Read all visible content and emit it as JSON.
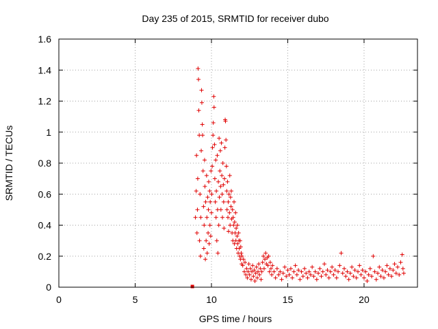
{
  "chart_data": {
    "type": "scatter",
    "title": "Day 235 of 2015, SRMTID for receiver dubo",
    "xlabel": "GPS time / hours",
    "ylabel": "SRMTID / TECUs",
    "xlim": [
      0,
      23.5
    ],
    "ylim": [
      0,
      1.6
    ],
    "xticks": [
      0,
      5,
      10,
      15,
      20
    ],
    "yticks": [
      0,
      0.2,
      0.4,
      0.6,
      0.8,
      1,
      1.2,
      1.4,
      1.6
    ],
    "xtick_labels": [
      "0",
      "5",
      "10",
      "15",
      "20"
    ],
    "ytick_labels": [
      "0",
      "0.2",
      "0.4",
      "0.6",
      "0.8",
      "1",
      "1.2",
      "1.4",
      "1.6"
    ],
    "grid": true,
    "marker": "plus",
    "color": "#e00000",
    "square_markers": [
      {
        "x": 8.75,
        "y": 0.0
      }
    ],
    "series": [
      {
        "name": "SRMTID",
        "points": [
          [
            8.95,
            0.45
          ],
          [
            9.0,
            0.62
          ],
          [
            9.02,
            0.85
          ],
          [
            9.05,
            0.35
          ],
          [
            9.08,
            0.5
          ],
          [
            9.1,
            0.7
          ],
          [
            9.12,
            1.41
          ],
          [
            9.15,
            1.34
          ],
          [
            9.17,
            1.14
          ],
          [
            9.2,
            0.98
          ],
          [
            9.22,
            0.3
          ],
          [
            9.25,
            0.6
          ],
          [
            9.28,
            0.2
          ],
          [
            9.3,
            0.45
          ],
          [
            9.33,
            0.88
          ],
          [
            9.35,
            1.27
          ],
          [
            9.37,
            1.19
          ],
          [
            9.4,
            1.05
          ],
          [
            9.42,
            0.98
          ],
          [
            9.45,
            0.75
          ],
          [
            9.48,
            0.52
          ],
          [
            9.5,
            0.25
          ],
          [
            9.52,
            0.4
          ],
          [
            9.55,
            0.82
          ],
          [
            9.57,
            0.65
          ],
          [
            9.6,
            0.18
          ],
          [
            9.62,
            0.55
          ],
          [
            9.65,
            0.3
          ],
          [
            9.68,
            0.72
          ],
          [
            9.7,
            0.45
          ],
          [
            9.72,
            0.22
          ],
          [
            9.75,
            0.58
          ],
          [
            9.78,
            0.35
          ],
          [
            9.8,
            0.5
          ],
          [
            9.82,
            0.68
          ],
          [
            9.85,
            0.28
          ],
          [
            9.88,
            0.62
          ],
          [
            9.9,
            0.4
          ],
          [
            9.92,
            0.55
          ],
          [
            9.95,
            0.33
          ],
          [
            9.97,
            0.75
          ],
          [
            10.0,
            0.48
          ],
          [
            10.02,
            0.6
          ],
          [
            10.05,
            0.78
          ],
          [
            10.07,
            0.9
          ],
          [
            10.1,
            0.98
          ],
          [
            10.12,
            1.06
          ],
          [
            10.15,
            1.23
          ],
          [
            10.17,
            1.16
          ],
          [
            10.2,
            0.92
          ],
          [
            10.22,
            0.7
          ],
          [
            10.25,
            0.55
          ],
          [
            10.28,
            0.82
          ],
          [
            10.3,
            0.45
          ],
          [
            10.32,
            0.62
          ],
          [
            10.35,
            0.3
          ],
          [
            10.38,
            0.85
          ],
          [
            10.4,
            0.5
          ],
          [
            10.42,
            0.22
          ],
          [
            10.45,
            0.68
          ],
          [
            10.48,
            0.4
          ],
          [
            10.5,
            0.96
          ],
          [
            10.52,
            0.58
          ],
          [
            10.55,
            0.75
          ],
          [
            10.58,
            0.88
          ],
          [
            10.6,
            0.65
          ],
          [
            10.62,
            0.5
          ],
          [
            10.65,
            0.93
          ],
          [
            10.68,
            0.72
          ],
          [
            10.7,
            0.6
          ],
          [
            10.72,
            0.45
          ],
          [
            10.75,
            0.8
          ],
          [
            10.78,
            0.66
          ],
          [
            10.8,
            0.55
          ],
          [
            10.82,
            0.38
          ],
          [
            10.85,
            0.7
          ],
          [
            10.88,
            0.9
          ],
          [
            10.9,
            1.08
          ],
          [
            10.92,
            1.07
          ],
          [
            10.95,
            0.95
          ],
          [
            10.98,
            0.78
          ],
          [
            11.0,
            0.62
          ],
          [
            11.02,
            0.5
          ],
          [
            11.05,
            0.68
          ],
          [
            11.08,
            0.45
          ],
          [
            11.1,
            0.55
          ],
          [
            11.12,
            0.36
          ],
          [
            11.15,
            0.6
          ],
          [
            11.18,
            0.48
          ],
          [
            11.2,
            0.72
          ],
          [
            11.22,
            0.4
          ],
          [
            11.25,
            0.58
          ],
          [
            11.28,
            0.52
          ],
          [
            11.3,
            0.62
          ],
          [
            11.32,
            0.44
          ],
          [
            11.35,
            0.35
          ],
          [
            11.38,
            0.5
          ],
          [
            11.4,
            0.3
          ],
          [
            11.42,
            0.45
          ],
          [
            11.45,
            0.4
          ],
          [
            11.48,
            0.55
          ],
          [
            11.5,
            0.28
          ],
          [
            11.52,
            0.42
          ],
          [
            11.55,
            0.35
          ],
          [
            11.58,
            0.48
          ],
          [
            11.6,
            0.3
          ],
          [
            11.62,
            0.38
          ],
          [
            11.65,
            0.25
          ],
          [
            11.68,
            0.33
          ],
          [
            11.7,
            0.4
          ],
          [
            11.72,
            0.28
          ],
          [
            11.75,
            0.22
          ],
          [
            11.78,
            0.35
          ],
          [
            11.8,
            0.3
          ],
          [
            11.82,
            0.25
          ],
          [
            11.85,
            0.2
          ],
          [
            11.88,
            0.3
          ],
          [
            11.9,
            0.18
          ],
          [
            11.92,
            0.26
          ],
          [
            11.95,
            0.22
          ],
          [
            11.98,
            0.15
          ],
          [
            12.0,
            0.2
          ],
          [
            12.05,
            0.14
          ],
          [
            12.1,
            0.18
          ],
          [
            12.15,
            0.1
          ],
          [
            12.2,
            0.16
          ],
          [
            12.25,
            0.08
          ],
          [
            12.3,
            0.12
          ],
          [
            12.35,
            0.06
          ],
          [
            12.4,
            0.1
          ],
          [
            12.45,
            0.15
          ],
          [
            12.5,
            0.08
          ],
          [
            12.55,
            0.12
          ],
          [
            12.6,
            0.05
          ],
          [
            12.65,
            0.1
          ],
          [
            12.7,
            0.14
          ],
          [
            12.75,
            0.07
          ],
          [
            12.8,
            0.11
          ],
          [
            12.85,
            0.04
          ],
          [
            12.9,
            0.09
          ],
          [
            12.95,
            0.13
          ],
          [
            13.0,
            0.06
          ],
          [
            13.05,
            0.1
          ],
          [
            13.1,
            0.15
          ],
          [
            13.15,
            0.08
          ],
          [
            13.2,
            0.12
          ],
          [
            13.25,
            0.05
          ],
          [
            13.3,
            0.1
          ],
          [
            13.35,
            0.16
          ],
          [
            13.4,
            0.2
          ],
          [
            13.45,
            0.12
          ],
          [
            13.5,
            0.18
          ],
          [
            13.55,
            0.22
          ],
          [
            13.6,
            0.15
          ],
          [
            13.65,
            0.19
          ],
          [
            13.7,
            0.14
          ],
          [
            13.75,
            0.2
          ],
          [
            13.8,
            0.1
          ],
          [
            13.85,
            0.16
          ],
          [
            13.9,
            0.12
          ],
          [
            13.95,
            0.08
          ],
          [
            14.0,
            0.14
          ],
          [
            14.1,
            0.1
          ],
          [
            14.2,
            0.06
          ],
          [
            14.3,
            0.12
          ],
          [
            14.4,
            0.08
          ],
          [
            14.5,
            0.1
          ],
          [
            14.6,
            0.05
          ],
          [
            14.7,
            0.09
          ],
          [
            14.8,
            0.13
          ],
          [
            14.9,
            0.07
          ],
          [
            15.0,
            0.11
          ],
          [
            15.1,
            0.08
          ],
          [
            15.2,
            0.12
          ],
          [
            15.3,
            0.06
          ],
          [
            15.4,
            0.1
          ],
          [
            15.5,
            0.14
          ],
          [
            15.6,
            0.08
          ],
          [
            15.7,
            0.11
          ],
          [
            15.8,
            0.05
          ],
          [
            15.9,
            0.1
          ],
          [
            16.0,
            0.07
          ],
          [
            16.1,
            0.12
          ],
          [
            16.2,
            0.09
          ],
          [
            16.3,
            0.06
          ],
          [
            16.4,
            0.1
          ],
          [
            16.5,
            0.08
          ],
          [
            16.6,
            0.13
          ],
          [
            16.7,
            0.07
          ],
          [
            16.8,
            0.1
          ],
          [
            16.9,
            0.05
          ],
          [
            17.0,
            0.09
          ],
          [
            17.1,
            0.12
          ],
          [
            17.2,
            0.07
          ],
          [
            17.3,
            0.1
          ],
          [
            17.4,
            0.15
          ],
          [
            17.5,
            0.08
          ],
          [
            17.6,
            0.11
          ],
          [
            17.7,
            0.06
          ],
          [
            17.8,
            0.1
          ],
          [
            17.9,
            0.13
          ],
          [
            18.0,
            0.08
          ],
          [
            18.1,
            0.11
          ],
          [
            18.2,
            0.06
          ],
          [
            18.3,
            0.1
          ],
          [
            18.4,
            0.14
          ],
          [
            18.5,
            0.22
          ],
          [
            18.6,
            0.09
          ],
          [
            18.7,
            0.12
          ],
          [
            18.8,
            0.07
          ],
          [
            18.9,
            0.1
          ],
          [
            19.0,
            0.05
          ],
          [
            19.1,
            0.09
          ],
          [
            19.2,
            0.13
          ],
          [
            19.3,
            0.07
          ],
          [
            19.4,
            0.11
          ],
          [
            19.5,
            0.06
          ],
          [
            19.6,
            0.1
          ],
          [
            19.7,
            0.14
          ],
          [
            19.8,
            0.08
          ],
          [
            19.9,
            0.11
          ],
          [
            20.0,
            0.06
          ],
          [
            20.1,
            0.1
          ],
          [
            20.2,
            0.04
          ],
          [
            20.3,
            0.08
          ],
          [
            20.4,
            0.12
          ],
          [
            20.5,
            0.07
          ],
          [
            20.6,
            0.2
          ],
          [
            20.7,
            0.1
          ],
          [
            20.8,
            0.05
          ],
          [
            20.9,
            0.09
          ],
          [
            21.0,
            0.13
          ],
          [
            21.1,
            0.07
          ],
          [
            21.2,
            0.11
          ],
          [
            21.3,
            0.06
          ],
          [
            21.4,
            0.1
          ],
          [
            21.5,
            0.14
          ],
          [
            21.6,
            0.08
          ],
          [
            21.7,
            0.12
          ],
          [
            21.8,
            0.07
          ],
          [
            21.9,
            0.11
          ],
          [
            22.0,
            0.15
          ],
          [
            22.1,
            0.09
          ],
          [
            22.2,
            0.13
          ],
          [
            22.3,
            0.08
          ],
          [
            22.4,
            0.16
          ],
          [
            22.5,
            0.21
          ],
          [
            22.55,
            0.12
          ],
          [
            22.6,
            0.09
          ]
        ]
      }
    ]
  }
}
